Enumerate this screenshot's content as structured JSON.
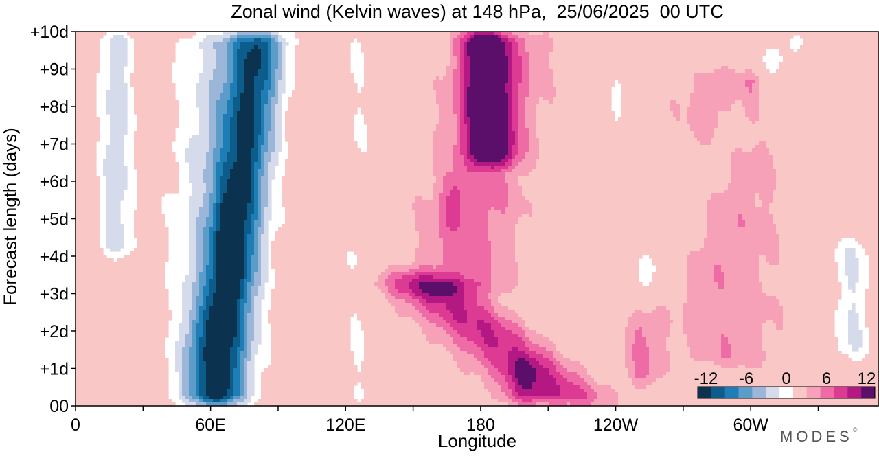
{
  "title": "Zonal wind (Kelvin waves) at 148 hPa,  25/06/2025  00 UTC",
  "logo": "MODES",
  "chart_data": {
    "type": "heatmap",
    "title": "Zonal wind (Kelvin waves) at 148 hPa,  25/06/2025  00 UTC",
    "xlabel": "Longitude",
    "ylabel": "Forecast length (days)",
    "x_ticks": [
      {
        "lon": 0,
        "label": "0"
      },
      {
        "lon": 60,
        "label": "60E"
      },
      {
        "lon": 120,
        "label": "120E"
      },
      {
        "lon": 180,
        "label": "180"
      },
      {
        "lon": 240,
        "label": "120W"
      },
      {
        "lon": 300,
        "label": "60W"
      }
    ],
    "x_minor_every": 30,
    "xlim": [
      0,
      357
    ],
    "y_ticks": [
      {
        "day": 0,
        "label": "00"
      },
      {
        "day": 1,
        "label": "+1d"
      },
      {
        "day": 2,
        "label": "+2d"
      },
      {
        "day": 3,
        "label": "+3d"
      },
      {
        "day": 4,
        "label": "+4d"
      },
      {
        "day": 5,
        "label": "+5d"
      },
      {
        "day": 6,
        "label": "+6d"
      },
      {
        "day": 7,
        "label": "+7d"
      },
      {
        "day": 8,
        "label": "+8d"
      },
      {
        "day": 9,
        "label": "+9d"
      },
      {
        "day": 10,
        "label": "+10d"
      }
    ],
    "ylim": [
      0,
      10
    ],
    "levels": [
      -14,
      -12,
      -10,
      -8,
      -6,
      -4,
      -2,
      2,
      4,
      6,
      8,
      10,
      12,
      14
    ],
    "colorbar": {
      "tick_labels": [
        "-12",
        "-6",
        "0",
        "6",
        "12"
      ],
      "colors": [
        "#0b3350",
        "#0c5d8c",
        "#1f7db6",
        "#5b9cc9",
        "#9bb6d8",
        "#d5dbeb",
        "#ffffff",
        "#f9c7c5",
        "#f6a1b8",
        "#ef6ba5",
        "#dc3a93",
        "#b41882",
        "#5c0f6a"
      ]
    },
    "features": [
      {
        "lon": 62,
        "day_from": 0,
        "day_to": 10,
        "speed_deg_per_day": 2,
        "width_deg": 24,
        "amplitude": -11.5
      },
      {
        "lon": 60,
        "day_from": 0,
        "day_to": 10,
        "speed_deg_per_day": 0.5,
        "width_deg": 42,
        "amplitude": -5
      },
      {
        "lon": 18,
        "day_from": 4,
        "day_to": 10,
        "speed_deg_per_day": 0,
        "width_deg": 16,
        "amplitude": -5
      },
      {
        "lon": 68,
        "day_from": 3,
        "day_to": 5.5,
        "speed_deg_per_day": 0,
        "width_deg": 12,
        "amplitude": -3
      },
      {
        "lon": 55,
        "day_from": 1.2,
        "day_to": 2.5,
        "speed_deg_per_day": 0,
        "width_deg": 12,
        "amplitude": -2
      },
      {
        "lon": 185,
        "day_from": 6.5,
        "day_to": 10,
        "speed_deg_per_day": -1,
        "width_deg": 20,
        "amplitude": 12
      },
      {
        "lon": 170,
        "day_from": 3,
        "day_to": 10,
        "speed_deg_per_day": 3,
        "width_deg": 46,
        "amplitude": 5
      },
      {
        "lon": 168,
        "day_from": 4.8,
        "day_to": 6,
        "speed_deg_per_day": 0,
        "width_deg": 10,
        "amplitude": 3
      },
      {
        "lon": 220,
        "day_from": 0,
        "day_to": 3.5,
        "speed_deg_per_day": -20,
        "width_deg": 44,
        "amplitude": 8
      },
      {
        "lon": 199,
        "day_from": 0,
        "day_to": 1.2,
        "speed_deg_per_day": 0,
        "width_deg": 16,
        "amplitude": 4
      },
      {
        "lon": 252,
        "day_from": 0.5,
        "day_to": 2.5,
        "speed_deg_per_day": 0,
        "width_deg": 18,
        "amplitude": 4
      },
      {
        "lon": 290,
        "day_from": 1,
        "day_to": 9,
        "speed_deg_per_day": 0,
        "width_deg": 50,
        "amplitude": 3.5
      },
      {
        "lon": 250,
        "day_from": 3,
        "day_to": 10,
        "speed_deg_per_day": 10,
        "width_deg": 24,
        "amplitude": -2.5
      },
      {
        "lon": 300,
        "day_from": 7.5,
        "day_to": 9,
        "speed_deg_per_day": 0,
        "width_deg": 8,
        "amplitude": 3
      },
      {
        "lon": 345,
        "day_from": 1.2,
        "day_to": 4.5,
        "speed_deg_per_day": 0,
        "width_deg": 18,
        "amplitude": -4
      },
      {
        "lon": 125,
        "day_from": 0,
        "day_to": 10,
        "speed_deg_per_day": 0,
        "width_deg": 14,
        "amplitude": -2
      },
      {
        "lon": 240,
        "day_from": 7,
        "day_to": 9,
        "speed_deg_per_day": 0,
        "width_deg": 8,
        "amplitude": -2.5
      }
    ]
  }
}
